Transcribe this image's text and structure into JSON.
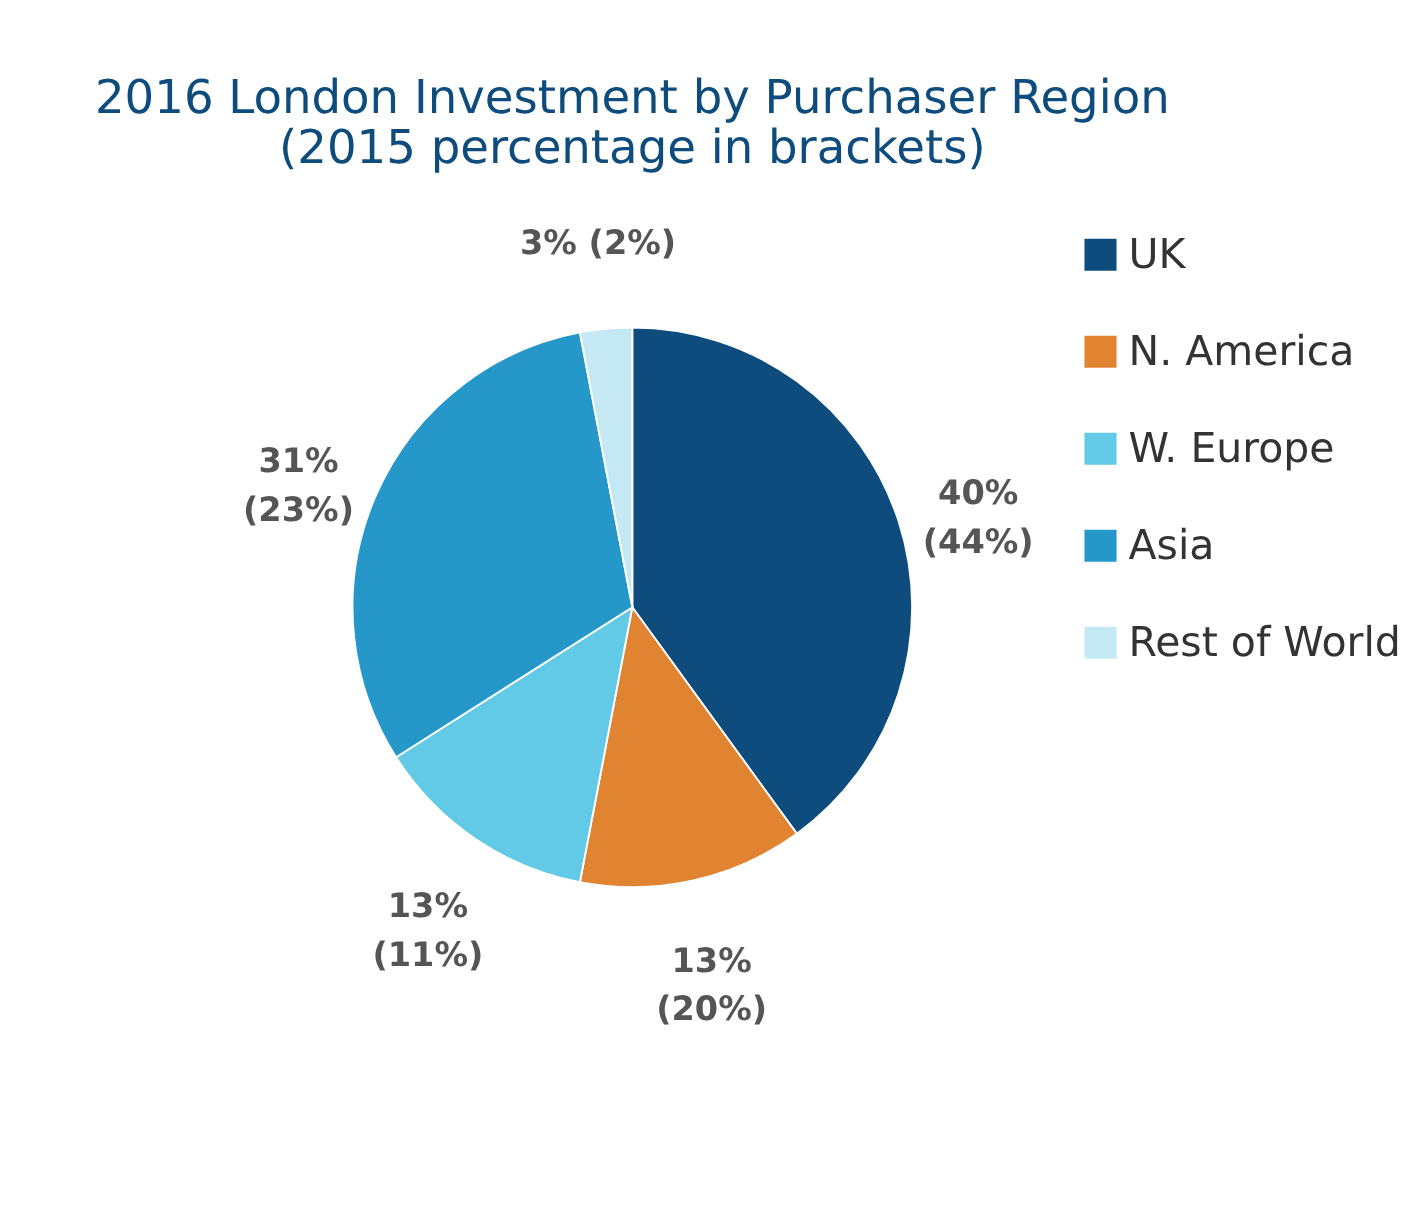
{
  "chart_data": {
    "type": "pie",
    "title": "2016 London Investment by Purchaser Region\n(2015 percentage in brackets)",
    "categories": [
      "UK",
      "N. America",
      "W. Europe",
      "Asia",
      "Rest of World"
    ],
    "values": [
      40,
      13,
      13,
      31,
      3
    ],
    "colors": [
      "#0d4c7c",
      "#e08432",
      "#62c9e6",
      "#2597c9",
      "#c4e9f5"
    ],
    "value_labels": [
      "40%\n(44%)",
      "13%\n(20%)",
      "13%\n(11%)",
      "31%\n(23%)",
      "3%  (2%)"
    ],
    "legend": "right"
  }
}
